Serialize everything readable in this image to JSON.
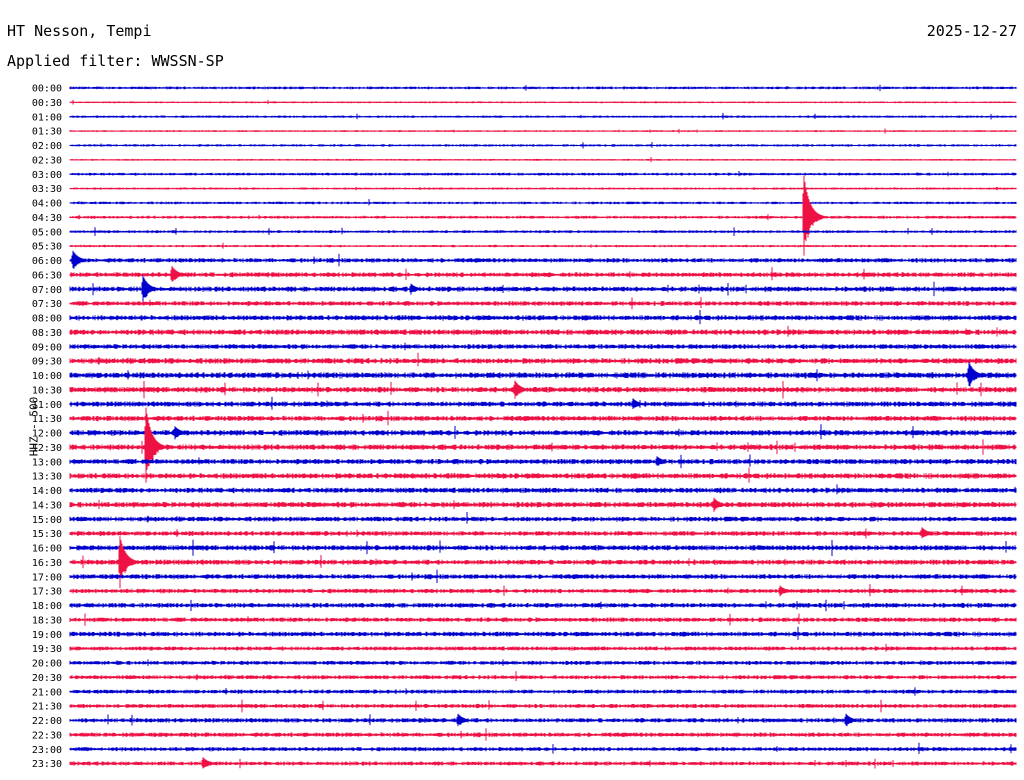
{
  "header": {
    "station": "HT Nesson, Tempi",
    "date": "2025-12-27",
    "filter": "Applied filter: WWSSN-SP"
  },
  "chart_data": {
    "type": "line",
    "title": "HT Nesson, Tempi",
    "channel_label": "HHZ - 500",
    "row_labels": [
      "00:00",
      "00:30",
      "01:00",
      "01:30",
      "02:00",
      "02:30",
      "03:00",
      "03:30",
      "04:00",
      "04:30",
      "05:00",
      "05:30",
      "06:00",
      "06:30",
      "07:00",
      "07:30",
      "08:00",
      "08:30",
      "09:00",
      "09:30",
      "10:00",
      "10:30",
      "11:00",
      "11:30",
      "12:00",
      "12:30",
      "13:00",
      "13:30",
      "14:00",
      "14:30",
      "15:00",
      "15:30",
      "16:00",
      "16:30",
      "17:00",
      "17:30",
      "18:00",
      "18:30",
      "19:00",
      "19:30",
      "20:00",
      "20:30",
      "21:00",
      "21:30",
      "22:00",
      "22:30",
      "23:00",
      "23:30"
    ],
    "row_colors": [
      "#0000cc",
      "#ee1144"
    ],
    "noise_levels": [
      1.5,
      1,
      1.3,
      1,
      1.3,
      1,
      1.5,
      1.2,
      1.4,
      1.6,
      1.5,
      1.3,
      2.4,
      2.6,
      2.8,
      2.5,
      2.8,
      3,
      2.6,
      3,
      3.2,
      3,
      2.8,
      2.8,
      3,
      3,
      2.8,
      3,
      2.8,
      3,
      2.6,
      2.6,
      2.8,
      2.8,
      2.6,
      2.4,
      2.6,
      2.4,
      2.6,
      2.2,
      2.2,
      2.2,
      2.2,
      2.2,
      2.4,
      2.4,
      2.2,
      2.2
    ],
    "events": [
      {
        "row": 9,
        "x_fraction": 0.775,
        "amplitude": 48
      },
      {
        "row": 12,
        "x_fraction": 0.003,
        "amplitude": 10
      },
      {
        "row": 13,
        "x_fraction": 0.107,
        "amplitude": 10
      },
      {
        "row": 14,
        "x_fraction": 0.077,
        "amplitude": 14
      },
      {
        "row": 14,
        "x_fraction": 0.36,
        "amplitude": 6
      },
      {
        "row": 20,
        "x_fraction": 0.95,
        "amplitude": 14
      },
      {
        "row": 21,
        "x_fraction": 0.47,
        "amplitude": 10
      },
      {
        "row": 22,
        "x_fraction": 0.595,
        "amplitude": 6
      },
      {
        "row": 24,
        "x_fraction": 0.11,
        "amplitude": 8
      },
      {
        "row": 25,
        "x_fraction": 0.08,
        "amplitude": 42
      },
      {
        "row": 26,
        "x_fraction": 0.62,
        "amplitude": 6
      },
      {
        "row": 29,
        "x_fraction": 0.68,
        "amplitude": 8
      },
      {
        "row": 31,
        "x_fraction": 0.9,
        "amplitude": 7
      },
      {
        "row": 33,
        "x_fraction": 0.052,
        "amplitude": 30
      },
      {
        "row": 35,
        "x_fraction": 0.75,
        "amplitude": 6
      },
      {
        "row": 44,
        "x_fraction": 0.41,
        "amplitude": 7
      },
      {
        "row": 44,
        "x_fraction": 0.82,
        "amplitude": 7
      },
      {
        "row": 47,
        "x_fraction": 0.14,
        "amplitude": 7
      }
    ]
  }
}
